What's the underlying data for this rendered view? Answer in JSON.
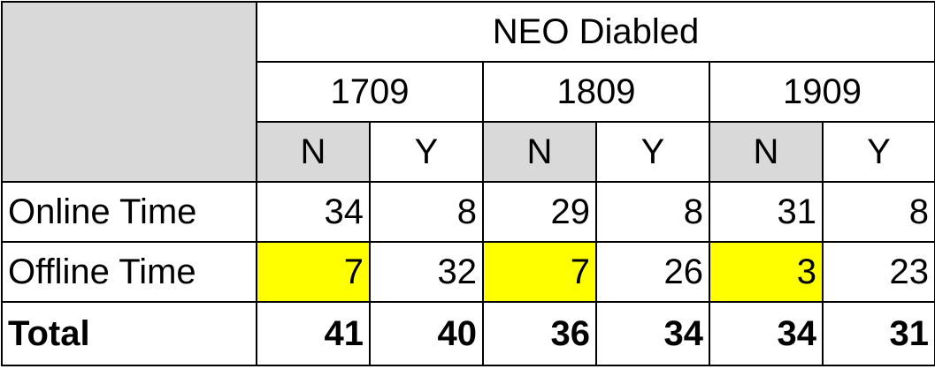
{
  "chart_data": {
    "type": "table",
    "title": "NEO Diabled",
    "months": [
      "1709",
      "1809",
      "1909"
    ],
    "sub_columns": [
      "N",
      "Y",
      "N",
      "Y",
      "N",
      "Y"
    ],
    "rows": [
      {
        "label": "Online Time",
        "values": [
          34,
          8,
          29,
          8,
          31,
          8
        ]
      },
      {
        "label": "Offline Time",
        "values": [
          7,
          32,
          7,
          26,
          3,
          23
        ]
      },
      {
        "label": "Total",
        "values": [
          41,
          40,
          36,
          34,
          34,
          31
        ]
      }
    ],
    "highlighted_cells": [
      {
        "row": "Offline Time",
        "column_index": 0
      },
      {
        "row": "Offline Time",
        "column_index": 2
      },
      {
        "row": "Offline Time",
        "column_index": 4
      }
    ],
    "colors": {
      "header_grey": "#d9d9d9",
      "highlight": "#ffff00",
      "border": "#000000"
    }
  }
}
